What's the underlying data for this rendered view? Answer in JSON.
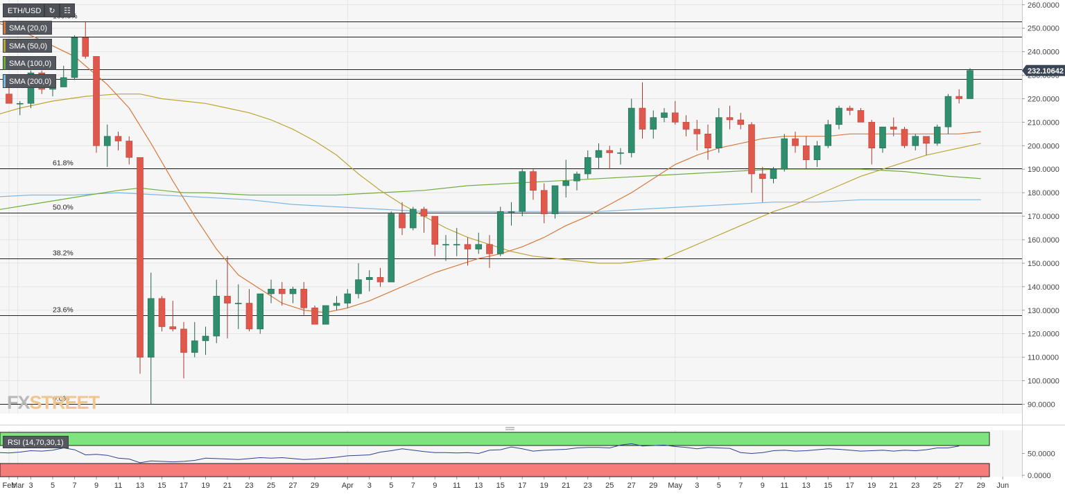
{
  "toolbar": {
    "symbol": "ETH/USD",
    "refresh_icon": "refresh-icon",
    "chart_type_icon": "candlestick-icon"
  },
  "indicators": [
    {
      "label": "SMA (20,0)",
      "color": "#d9783a"
    },
    {
      "label": "SMA (50,0)",
      "color": "#b9a531"
    },
    {
      "label": "SMA (100,0)",
      "color": "#6fae3a"
    },
    {
      "label": "SMA (200,0)",
      "color": "#7bb8e6"
    }
  ],
  "price_tag": "232.10642",
  "logo": {
    "part1": "FX",
    "part2": "STREET"
  },
  "rsi": {
    "label": "RSI (14,70,30,1)",
    "ticks": [
      "50.0000",
      "0.0000"
    ]
  },
  "colors": {
    "up": "#2f8f6d",
    "down": "#e0584c",
    "rsi_over": "#7ee57e",
    "rsi_under": "#f67c7c",
    "rsi_line": "#2e3f8f"
  },
  "chart_data": {
    "type": "candlestick",
    "y_axis_ticks": [
      "260.0000",
      "250.0000",
      "240.0000",
      "230.0000",
      "220.0000",
      "210.0000",
      "200.0000",
      "190.0000",
      "180.0000",
      "170.0000",
      "160.0000",
      "150.0000",
      "140.0000",
      "130.0000",
      "120.0000",
      "110.0000",
      "100.0000",
      "90.0000"
    ],
    "ylim": [
      86,
      262
    ],
    "x_ticks": [
      {
        "d": 0,
        "label": "Feb"
      },
      {
        "d": 0.8,
        "label": "Mar"
      },
      {
        "d": 2,
        "label": "3"
      },
      {
        "d": 4,
        "label": "5"
      },
      {
        "d": 6,
        "label": "7"
      },
      {
        "d": 8,
        "label": "9"
      },
      {
        "d": 10,
        "label": "11"
      },
      {
        "d": 12,
        "label": "13"
      },
      {
        "d": 14,
        "label": "15"
      },
      {
        "d": 16,
        "label": "17"
      },
      {
        "d": 18,
        "label": "19"
      },
      {
        "d": 20,
        "label": "21"
      },
      {
        "d": 22,
        "label": "23"
      },
      {
        "d": 24,
        "label": "25"
      },
      {
        "d": 26,
        "label": "27"
      },
      {
        "d": 28,
        "label": "29"
      },
      {
        "d": 31,
        "label": "Apr"
      },
      {
        "d": 33,
        "label": "3"
      },
      {
        "d": 35,
        "label": "5"
      },
      {
        "d": 37,
        "label": "7"
      },
      {
        "d": 39,
        "label": "9"
      },
      {
        "d": 41,
        "label": "11"
      },
      {
        "d": 43,
        "label": "13"
      },
      {
        "d": 45,
        "label": "15"
      },
      {
        "d": 47,
        "label": "17"
      },
      {
        "d": 49,
        "label": "19"
      },
      {
        "d": 51,
        "label": "21"
      },
      {
        "d": 53,
        "label": "23"
      },
      {
        "d": 55,
        "label": "25"
      },
      {
        "d": 57,
        "label": "27"
      },
      {
        "d": 59,
        "label": "29"
      },
      {
        "d": 61,
        "label": "May"
      },
      {
        "d": 63,
        "label": "3"
      },
      {
        "d": 65,
        "label": "5"
      },
      {
        "d": 67,
        "label": "7"
      },
      {
        "d": 69,
        "label": "9"
      },
      {
        "d": 71,
        "label": "11"
      },
      {
        "d": 73,
        "label": "13"
      },
      {
        "d": 75,
        "label": "15"
      },
      {
        "d": 77,
        "label": "17"
      },
      {
        "d": 79,
        "label": "19"
      },
      {
        "d": 81,
        "label": "21"
      },
      {
        "d": 83,
        "label": "23"
      },
      {
        "d": 85,
        "label": "25"
      },
      {
        "d": 87,
        "label": "27"
      },
      {
        "d": 89,
        "label": "29"
      },
      {
        "d": 91,
        "label": "Jun"
      }
    ],
    "fib_levels": [
      {
        "label": "100.0%",
        "value": 253
      },
      {
        "label": "",
        "value": 246.5
      },
      {
        "label": "",
        "value": 232.5
      },
      {
        "label": "",
        "value": 228.5
      },
      {
        "label": "61.8%",
        "value": 190.5
      },
      {
        "label": "50.0%",
        "value": 171.5
      },
      {
        "label": "38.2%",
        "value": 152
      },
      {
        "label": "23.6%",
        "value": 128
      },
      {
        "label": "0.0%",
        "value": 90
      }
    ],
    "candles": [
      [
        222,
        225,
        218,
        218
      ],
      [
        218,
        219,
        213,
        218
      ],
      [
        218,
        232,
        216,
        231
      ],
      [
        231,
        232,
        222,
        224
      ],
      [
        224,
        229,
        221,
        225
      ],
      [
        225,
        234,
        225,
        229
      ],
      [
        229,
        247,
        228,
        246
      ],
      [
        246,
        253,
        237,
        238
      ],
      [
        238,
        238,
        197,
        200
      ],
      [
        200,
        209,
        191,
        204
      ],
      [
        204,
        206,
        198,
        202
      ],
      [
        202,
        204,
        192,
        195
      ],
      [
        195,
        195,
        103,
        110
      ],
      [
        110,
        146,
        90,
        135
      ],
      [
        135,
        136,
        121,
        123
      ],
      [
        123,
        134,
        121,
        122
      ],
      [
        122,
        125,
        101,
        112
      ],
      [
        112,
        125,
        110,
        117
      ],
      [
        117,
        123,
        111,
        119
      ],
      [
        119,
        143,
        116,
        136
      ],
      [
        136,
        153,
        118,
        133
      ],
      [
        133,
        141,
        122,
        133
      ],
      [
        133,
        139,
        121,
        122
      ],
      [
        122,
        137,
        120,
        137
      ],
      [
        137,
        143,
        133,
        139
      ],
      [
        139,
        142,
        132,
        137
      ],
      [
        137,
        140,
        133,
        139
      ],
      [
        139,
        142,
        128,
        131
      ],
      [
        131,
        132,
        124,
        124
      ],
      [
        124,
        132,
        124,
        132
      ],
      [
        132,
        136,
        130,
        133
      ],
      [
        133,
        139,
        131,
        137
      ],
      [
        137,
        150,
        135,
        143
      ],
      [
        143,
        147,
        138,
        144
      ],
      [
        144,
        148,
        140,
        142
      ],
      [
        142,
        172,
        142,
        171
      ],
      [
        171,
        176,
        162,
        165
      ],
      [
        165,
        174,
        164,
        173
      ],
      [
        173,
        174,
        163,
        170
      ],
      [
        170,
        170,
        153,
        158
      ],
      [
        158,
        162,
        151,
        158
      ],
      [
        158,
        165,
        153,
        158
      ],
      [
        158,
        161,
        149,
        156
      ],
      [
        156,
        163,
        154,
        158
      ],
      [
        158,
        162,
        148,
        154
      ],
      [
        154,
        174,
        153,
        172
      ],
      [
        172,
        176,
        166,
        172
      ],
      [
        172,
        190,
        170,
        189
      ],
      [
        189,
        190,
        177,
        181
      ],
      [
        181,
        184,
        167,
        171
      ],
      [
        171,
        183,
        169,
        183
      ],
      [
        183,
        194,
        178,
        185
      ],
      [
        185,
        189,
        181,
        188
      ],
      [
        188,
        198,
        186,
        195
      ],
      [
        195,
        201,
        190,
        198
      ],
      [
        198,
        200,
        190,
        197
      ],
      [
        197,
        199,
        192,
        197
      ],
      [
        197,
        220,
        195,
        216
      ],
      [
        216,
        227,
        203,
        207
      ],
      [
        207,
        215,
        203,
        212
      ],
      [
        212,
        216,
        210,
        214
      ],
      [
        214,
        219,
        209,
        210
      ],
      [
        210,
        213,
        204,
        207
      ],
      [
        207,
        211,
        198,
        205
      ],
      [
        205,
        209,
        194,
        199
      ],
      [
        199,
        216,
        197,
        212
      ],
      [
        212,
        217,
        207,
        211
      ],
      [
        211,
        214,
        207,
        209
      ],
      [
        209,
        210,
        180,
        188
      ],
      [
        188,
        191,
        176,
        186
      ],
      [
        186,
        191,
        184,
        190
      ],
      [
        190,
        205,
        189,
        203
      ],
      [
        203,
        206,
        197,
        200
      ],
      [
        200,
        204,
        190,
        194
      ],
      [
        194,
        202,
        191,
        200
      ],
      [
        200,
        211,
        199,
        209
      ],
      [
        209,
        217,
        207,
        216
      ],
      [
        216,
        217,
        213,
        215
      ],
      [
        215,
        216,
        210,
        210
      ],
      [
        210,
        211,
        192,
        199
      ],
      [
        199,
        208,
        197,
        208
      ],
      [
        208,
        212,
        204,
        207
      ],
      [
        207,
        208,
        199,
        200
      ],
      [
        200,
        205,
        198,
        204
      ],
      [
        204,
        204,
        196,
        201
      ],
      [
        201,
        209,
        200,
        208
      ],
      [
        208,
        222,
        205,
        221
      ],
      [
        221,
        224,
        218,
        220
      ],
      [
        220,
        233,
        220,
        232
      ]
    ],
    "sma20": [
      [
        -2,
        254
      ],
      [
        2,
        247
      ],
      [
        6,
        238
      ],
      [
        9,
        226
      ],
      [
        11,
        216
      ],
      [
        13,
        201
      ],
      [
        15,
        185
      ],
      [
        17,
        170
      ],
      [
        19,
        156
      ],
      [
        21,
        145
      ],
      [
        23,
        139
      ],
      [
        25,
        133
      ],
      [
        27,
        130
      ],
      [
        29,
        129
      ],
      [
        31,
        131
      ],
      [
        33,
        134
      ],
      [
        35,
        138
      ],
      [
        37,
        142
      ],
      [
        39,
        146
      ],
      [
        41,
        149
      ],
      [
        43,
        152
      ],
      [
        45,
        154
      ],
      [
        47,
        157
      ],
      [
        49,
        161
      ],
      [
        51,
        166
      ],
      [
        53,
        170
      ],
      [
        55,
        175
      ],
      [
        57,
        180
      ],
      [
        59,
        186
      ],
      [
        61,
        192
      ],
      [
        63,
        196
      ],
      [
        65,
        199
      ],
      [
        67,
        201
      ],
      [
        69,
        203
      ],
      [
        71,
        204
      ],
      [
        73,
        204
      ],
      [
        75,
        204
      ],
      [
        77,
        205
      ],
      [
        79,
        205
      ],
      [
        81,
        205
      ],
      [
        83,
        205
      ],
      [
        85,
        205
      ],
      [
        87,
        205
      ],
      [
        89,
        206
      ]
    ],
    "sma50": [
      [
        -2,
        212
      ],
      [
        1,
        216
      ],
      [
        4,
        219
      ],
      [
        7,
        221
      ],
      [
        10,
        222
      ],
      [
        12,
        222
      ],
      [
        14,
        220
      ],
      [
        16,
        219
      ],
      [
        18,
        218
      ],
      [
        20,
        216
      ],
      [
        22,
        214
      ],
      [
        24,
        211
      ],
      [
        26,
        207
      ],
      [
        28,
        202
      ],
      [
        30,
        196
      ],
      [
        32,
        188
      ],
      [
        34,
        181
      ],
      [
        36,
        175
      ],
      [
        38,
        170
      ],
      [
        40,
        165
      ],
      [
        42,
        161
      ],
      [
        44,
        158
      ],
      [
        46,
        155
      ],
      [
        48,
        153
      ],
      [
        50,
        152
      ],
      [
        52,
        151
      ],
      [
        54,
        150
      ],
      [
        56,
        150
      ],
      [
        58,
        151
      ],
      [
        60,
        152
      ],
      [
        62,
        156
      ],
      [
        64,
        160
      ],
      [
        66,
        164
      ],
      [
        68,
        168
      ],
      [
        70,
        172
      ],
      [
        72,
        175
      ],
      [
        74,
        179
      ],
      [
        76,
        183
      ],
      [
        78,
        187
      ],
      [
        80,
        190
      ],
      [
        82,
        193
      ],
      [
        84,
        196
      ],
      [
        86,
        198
      ],
      [
        88,
        200
      ],
      [
        89,
        201
      ]
    ],
    "sma100": [
      [
        -2,
        172
      ],
      [
        2,
        175
      ],
      [
        6,
        178
      ],
      [
        10,
        181
      ],
      [
        12,
        182
      ],
      [
        14,
        181
      ],
      [
        16,
        180
      ],
      [
        18,
        180
      ],
      [
        22,
        179
      ],
      [
        26,
        179
      ],
      [
        30,
        179
      ],
      [
        34,
        180
      ],
      [
        38,
        181
      ],
      [
        42,
        183
      ],
      [
        46,
        184
      ],
      [
        50,
        185
      ],
      [
        54,
        186
      ],
      [
        58,
        187
      ],
      [
        62,
        188
      ],
      [
        66,
        189
      ],
      [
        70,
        190
      ],
      [
        74,
        190
      ],
      [
        78,
        190
      ],
      [
        82,
        189
      ],
      [
        86,
        187
      ],
      [
        89,
        186
      ]
    ],
    "sma200": [
      [
        -2,
        178
      ],
      [
        2,
        179
      ],
      [
        6,
        179
      ],
      [
        10,
        180
      ],
      [
        14,
        179
      ],
      [
        18,
        178
      ],
      [
        22,
        177
      ],
      [
        26,
        175
      ],
      [
        30,
        174
      ],
      [
        34,
        173
      ],
      [
        38,
        172
      ],
      [
        42,
        172
      ],
      [
        46,
        172
      ],
      [
        50,
        172
      ],
      [
        54,
        172
      ],
      [
        58,
        173
      ],
      [
        62,
        174
      ],
      [
        66,
        175
      ],
      [
        70,
        176
      ],
      [
        74,
        176
      ],
      [
        78,
        177
      ],
      [
        82,
        177
      ],
      [
        86,
        177
      ],
      [
        89,
        177
      ]
    ],
    "rsi_values": [
      52,
      51,
      53,
      56,
      55,
      57,
      62,
      58,
      47,
      48,
      46,
      40,
      38,
      30,
      34,
      33,
      32,
      33,
      35,
      40,
      39,
      38,
      37,
      39,
      41,
      40,
      41,
      39,
      37,
      38,
      40,
      42,
      45,
      46,
      47,
      53,
      56,
      60,
      57,
      54,
      52,
      52,
      51,
      52,
      50,
      57,
      58,
      64,
      60,
      55,
      57,
      58,
      59,
      62,
      63,
      63,
      62,
      68,
      71,
      66,
      67,
      68,
      65,
      63,
      60,
      63,
      62,
      61,
      52,
      50,
      52,
      56,
      57,
      55,
      56,
      58,
      60,
      59,
      57,
      55,
      56,
      57,
      55,
      57,
      56,
      58,
      62,
      62,
      66
    ]
  }
}
